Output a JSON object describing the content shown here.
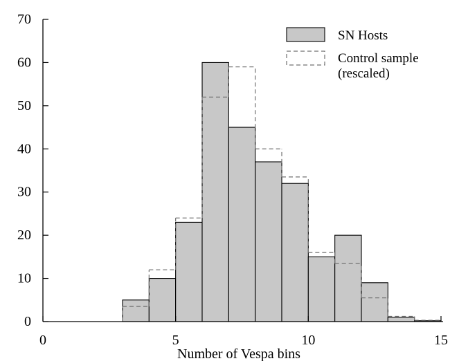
{
  "chart_data": {
    "type": "bar",
    "subtype": "histogram",
    "bin_edges": [
      0,
      1,
      2,
      3,
      4,
      5,
      6,
      7,
      8,
      9,
      10,
      11,
      12,
      13,
      14,
      15
    ],
    "series": [
      {
        "name": "SN Hosts",
        "style": "filled",
        "color": "#c8c8c8",
        "values": [
          0,
          0,
          0,
          5,
          10,
          23,
          60,
          45,
          37,
          32,
          15,
          20,
          9,
          1,
          0.2
        ]
      },
      {
        "name": "Control sample (rescaled)",
        "style": "dashed",
        "color": "#707070",
        "values": [
          0,
          0,
          0,
          3.5,
          12,
          24,
          52,
          59,
          40,
          33.5,
          16,
          13.5,
          5.5,
          1.2,
          0.3
        ]
      }
    ],
    "xlabel": "Number of Vespa bins",
    "ylabel": "",
    "xlim": [
      0,
      15
    ],
    "ylim": [
      0,
      70
    ],
    "xticks": [
      0,
      5,
      10,
      15
    ],
    "yticks": [
      0,
      10,
      20,
      30,
      40,
      50,
      60,
      70
    ],
    "grid": false,
    "legend": {
      "position": "top-right",
      "entries": [
        {
          "series": 0,
          "lines": [
            "SN Hosts"
          ]
        },
        {
          "series": 1,
          "lines": [
            "Control sample",
            "(rescaled)"
          ]
        }
      ]
    }
  }
}
